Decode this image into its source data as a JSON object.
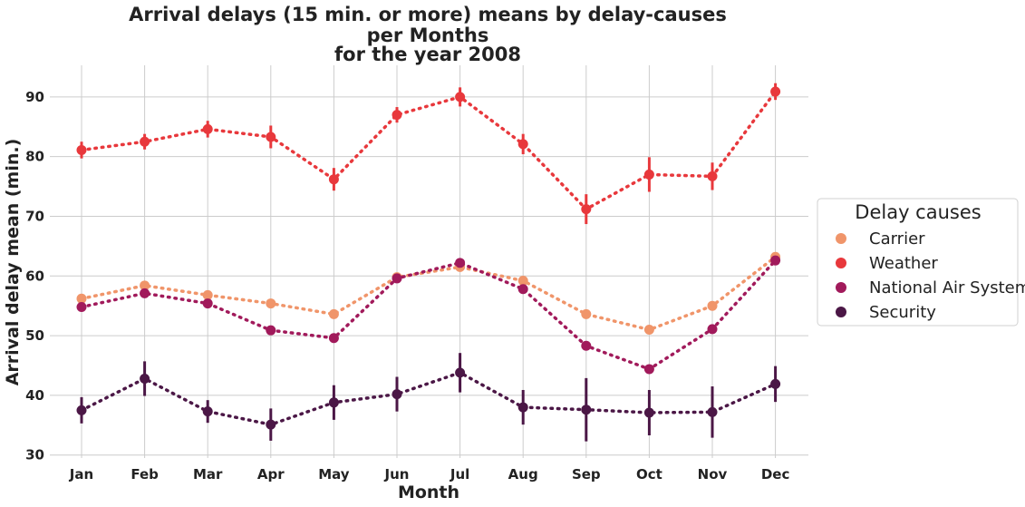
{
  "chart_data": {
    "type": "line",
    "title_lines": [
      "Arrival delays (15 min. or more) means by delay-causes",
      "per Months",
      "for the year 2008"
    ],
    "xlabel": "Month",
    "ylabel": "Arrival delay mean (min.)",
    "categories": [
      "Jan",
      "Feb",
      "Mar",
      "Apr",
      "May",
      "Jun",
      "Jul",
      "Aug",
      "Sep",
      "Oct",
      "Nov",
      "Dec"
    ],
    "yticks": [
      30,
      40,
      50,
      60,
      70,
      80,
      90
    ],
    "ylim": [
      29.5,
      95.3
    ],
    "grid": true,
    "legend": {
      "title": "Delay causes",
      "placement": "right"
    },
    "series": [
      {
        "name": "Carrier",
        "color": "#f0956a",
        "values": [
          56.2,
          58.4,
          56.8,
          55.4,
          53.6,
          59.8,
          61.5,
          59.2,
          53.6,
          51.0,
          55.0,
          63.2
        ],
        "err": [
          0.5,
          0.5,
          0.5,
          0.5,
          0.5,
          0.5,
          0.5,
          0.5,
          0.5,
          0.5,
          0.5,
          0.5
        ]
      },
      {
        "name": "Weather",
        "color": "#e8383c",
        "values": [
          81.1,
          82.5,
          84.6,
          83.3,
          76.2,
          87.0,
          90.0,
          82.1,
          71.2,
          77.0,
          76.7,
          90.9
        ],
        "err": [
          1.4,
          1.3,
          1.4,
          1.9,
          1.9,
          1.3,
          1.6,
          1.7,
          2.5,
          2.9,
          2.3,
          1.4
        ]
      },
      {
        "name": "National Air System",
        "color": "#a11a5b",
        "values": [
          54.8,
          57.1,
          55.4,
          50.9,
          49.6,
          59.6,
          62.2,
          57.8,
          48.3,
          44.4,
          51.1,
          62.6
        ],
        "err": [
          0.5,
          0.5,
          0.5,
          0.5,
          0.5,
          0.5,
          0.5,
          0.5,
          0.5,
          0.5,
          0.5,
          0.5
        ]
      },
      {
        "name": "Security",
        "color": "#4b1746",
        "values": [
          37.5,
          42.8,
          37.3,
          35.1,
          38.8,
          40.2,
          43.8,
          38.0,
          37.6,
          37.1,
          37.2,
          41.9
        ],
        "err": [
          2.2,
          2.9,
          1.9,
          2.7,
          2.9,
          2.9,
          3.3,
          2.9,
          5.3,
          3.8,
          4.3,
          3.0
        ]
      }
    ]
  }
}
